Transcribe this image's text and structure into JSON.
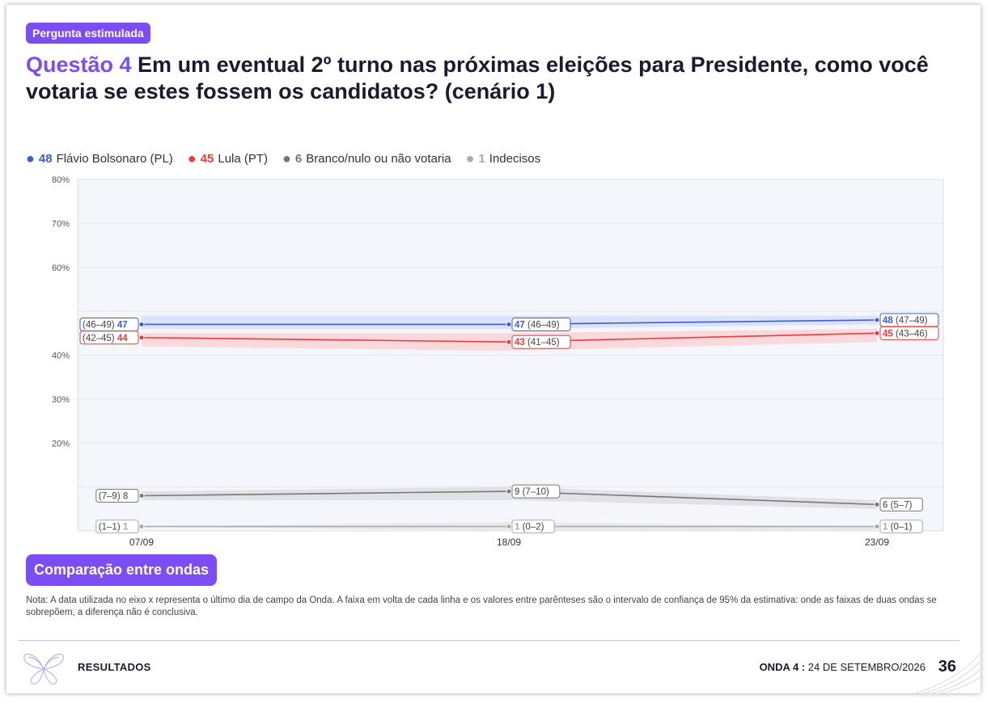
{
  "header": {
    "badge": "Pergunta estimulada",
    "question_label": "Questão 4",
    "question_text": " Em um eventual 2º turno nas próximas eleições para Presidente, como você votaria se estes fossem os candidatos? (cenário 1)"
  },
  "legend": [
    {
      "value": "48",
      "label": "Flávio Bolsonaro (PL)",
      "color": "#3d5bdb"
    },
    {
      "value": "45",
      "label": "Lula (PT)",
      "color": "#ef3b3b"
    },
    {
      "value": "6",
      "label": "Branco/nulo ou não votaria",
      "color": "#777777"
    },
    {
      "value": "1",
      "label": "Indecisos",
      "color": "#aaaaaa"
    }
  ],
  "chart_data": {
    "type": "line",
    "x": [
      "07/09",
      "18/09",
      "23/09"
    ],
    "y_ticks": [
      "20%",
      "30%",
      "40%",
      "60%",
      "70%",
      "80%"
    ],
    "series": [
      {
        "name": "Flávio Bolsonaro (PL)",
        "color": "#3d5bdb",
        "band": "#d6defa",
        "values": [
          47,
          47,
          48
        ],
        "ci": [
          [
            46,
            49
          ],
          [
            46,
            49
          ],
          [
            47,
            49
          ]
        ],
        "labels": [
          "(46–49) 47",
          "47 (46–49)",
          "48 (47–49)"
        ]
      },
      {
        "name": "Lula (PT)",
        "color": "#ef3b3b",
        "band": "#f9d3d6",
        "values": [
          44,
          43,
          45
        ],
        "ci": [
          [
            42,
            45
          ],
          [
            41,
            45
          ],
          [
            43,
            46
          ]
        ],
        "labels": [
          "(42–45) 44",
          "43 (41–45)",
          "45 (43–46)"
        ]
      },
      {
        "name": "Branco/nulo ou não votaria",
        "color": "#777777",
        "band": "#dddde2",
        "values": [
          8,
          9,
          6
        ],
        "ci": [
          [
            7,
            9
          ],
          [
            7,
            10
          ],
          [
            5,
            7
          ]
        ],
        "labels": [
          "(7–9) 8",
          "9 (7–10)",
          "6 (5–7)"
        ]
      },
      {
        "name": "Indecisos",
        "color": "#aaaaaa",
        "band": "#e6e6ea",
        "values": [
          1,
          1,
          1
        ],
        "ci": [
          [
            1,
            1
          ],
          [
            0,
            2
          ],
          [
            0,
            1
          ]
        ],
        "labels": [
          "(1–1) 1",
          "1 (0–2)",
          "1 (0–1)"
        ]
      }
    ],
    "ylim": [
      0,
      80
    ],
    "grid": true,
    "legend_position": "top-left"
  },
  "compare_button": "Comparação entre ondas",
  "note": "Nota: A data utilizada no eixo x representa o último dia de campo da Onda. A faixa em volta de cada linha e os valores entre parênteses são o intervalo de confiança de 95% da estimativa: onde as faixas de duas ondas se sobrepõem, a diferença não é conclusiva.",
  "footer": {
    "section": "RESULTADOS",
    "wave_label": "ONDA 4 :",
    "wave_date": "24 DE SETEMBRO/2026",
    "page_number": "36"
  }
}
